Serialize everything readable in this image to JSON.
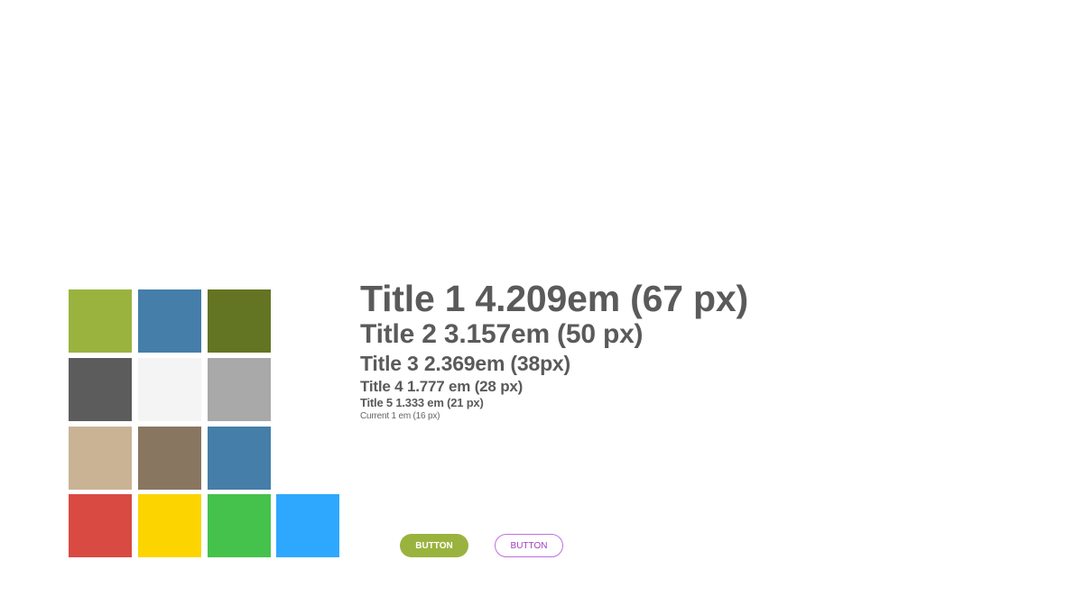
{
  "palette": {
    "rows": [
      [
        "#9ab33f",
        "#457ea8",
        "#637522"
      ],
      [
        "#5c5c5c",
        "#f4f4f4",
        "#a9a9a9"
      ],
      [
        "#cab394",
        "#897661",
        "#457ea8"
      ],
      [
        "#d94a43",
        "#fcd500",
        "#45c24b",
        "#2ea8ff"
      ]
    ]
  },
  "type_scale": {
    "title1": "Title 1 4.209em (67 px)",
    "title2": "Title 2 3.157em (50 px)",
    "title3": "Title 3 2.369em (38px)",
    "title4": "Title 4 1.777 em (28 px)",
    "title5": "Title 5 1.333 em (21 px)",
    "current": "Current 1 em (16 px)"
  },
  "buttons": {
    "primary_label": "BUTTON",
    "secondary_label": "BUTTON"
  }
}
